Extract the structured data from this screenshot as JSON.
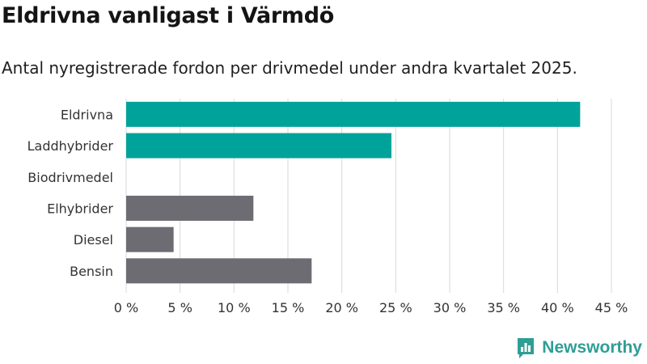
{
  "title": "Eldrivna vanligast i Värmdö",
  "subtitle": "Antal nyregistrerade fordon per drivmedel under andra kvartalet 2025.",
  "brand": {
    "name": "Newsworthy",
    "icon": "newsworthy-logo-icon"
  },
  "colors": {
    "highlight": "#00a39a",
    "other": "#6e6c73",
    "grid": "#d9d9d9"
  },
  "chart_data": {
    "type": "bar",
    "orientation": "horizontal",
    "categories": [
      "Eldrivna",
      "Laddhybrider",
      "Biodrivmedel",
      "Elhybrider",
      "Diesel",
      "Bensin"
    ],
    "values": [
      42.1,
      24.6,
      0,
      11.8,
      4.4,
      17.2
    ],
    "highlighted": [
      true,
      true,
      true,
      false,
      false,
      false
    ],
    "xlim": [
      0,
      45
    ],
    "xticks": [
      0,
      5,
      10,
      15,
      20,
      25,
      30,
      35,
      40,
      45
    ],
    "xtick_labels": [
      "0 %",
      "5 %",
      "10 %",
      "15 %",
      "20 %",
      "25 %",
      "30 %",
      "35 %",
      "40 %",
      "45 %"
    ],
    "grid": true,
    "legend": "none"
  }
}
